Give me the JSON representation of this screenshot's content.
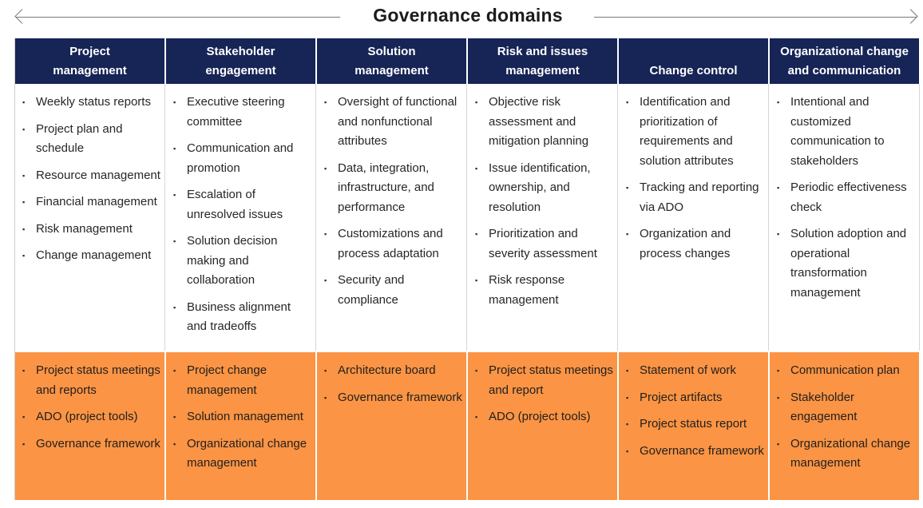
{
  "title": "Governance domains",
  "columns": [
    {
      "header": "Project management",
      "header_lines": [
        "Project",
        "management"
      ],
      "items": [
        "Weekly status reports",
        "Project plan and schedule",
        "Resource management",
        "Financial management",
        "Risk management",
        "Change management"
      ],
      "tools": [
        "Project status meetings and reports",
        "ADO (project tools)",
        "Governance framework"
      ]
    },
    {
      "header": "Stakeholder engagement",
      "header_lines": [
        "Stakeholder",
        "engagement"
      ],
      "items": [
        "Executive steering committee",
        "Communication and promotion",
        "Escalation of unresolved issues",
        "Solution decision making and collaboration",
        "Business alignment and tradeoffs"
      ],
      "tools": [
        "Project change management",
        "Solution management",
        "Organizational change management"
      ]
    },
    {
      "header": "Solution management",
      "header_lines": [
        "Solution",
        "management"
      ],
      "items": [
        "Oversight of functional and nonfunctional attributes",
        "Data, integration, infrastructure, and performance",
        "Customizations and process adaptation",
        "Security and compliance"
      ],
      "tools": [
        "Architecture board",
        "Governance framework"
      ]
    },
    {
      "header": "Risk and issues management",
      "header_lines": [
        "Risk and issues",
        "management"
      ],
      "items": [
        "Objective risk assessment and mitigation planning",
        "Issue identification, ownership, and resolution",
        "Prioritization and severity assessment",
        "Risk response management"
      ],
      "tools": [
        "Project status meetings and report",
        "ADO (project tools)"
      ]
    },
    {
      "header": "Change control",
      "header_lines": [
        "Change control"
      ],
      "items": [
        "Identification and prioritization of requirements and solution attributes",
        "Tracking and reporting via ADO",
        "Organization and process changes"
      ],
      "tools": [
        "Statement of work",
        "Project artifacts",
        "Project status report",
        "Governance framework"
      ]
    },
    {
      "header": "Organizational change and communication",
      "header_lines": [
        "Organizational change",
        "and communication"
      ],
      "items": [
        "Intentional and customized communication to stakeholders",
        "Periodic effectiveness check",
        "Solution adoption and operational transformation management"
      ],
      "tools": [
        "Communication plan",
        "Stakeholder engagement",
        "Organizational change management"
      ]
    }
  ],
  "colors": {
    "header_bg": "#162456",
    "tools_bg": "#fb9444",
    "arrow": "#7a7a7a"
  }
}
